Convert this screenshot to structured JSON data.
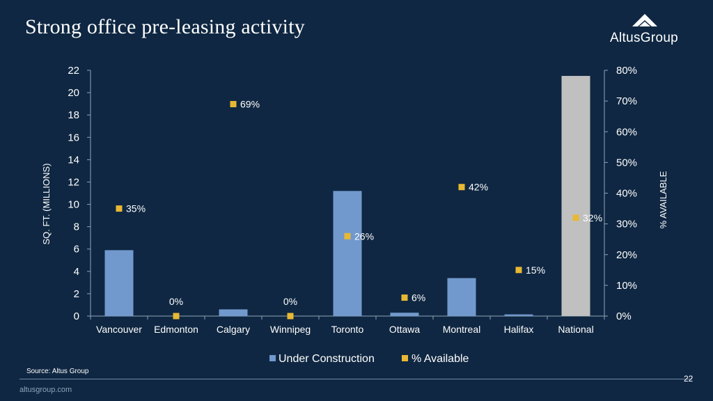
{
  "slide": {
    "title": "Strong office pre-leasing activity",
    "logo_text": "AltusGroup",
    "source": "Source:  Altus Group",
    "page_number": "22",
    "footer_url": "altusgroup.com"
  },
  "colors": {
    "background": "#0f2742",
    "bar": "#7199cd",
    "bar_national": "#c0c0c0",
    "marker": "#e8b833",
    "text": "#ffffff"
  },
  "chart_data": {
    "type": "bar",
    "categories": [
      "Vancouver",
      "Edmonton",
      "Calgary",
      "Winnipeg",
      "Toronto",
      "Ottawa",
      "Montreal",
      "Halifax",
      "National"
    ],
    "series": [
      {
        "name": "Under Construction",
        "type": "bar",
        "axis": "left",
        "values": [
          5.9,
          0,
          0.6,
          0,
          11.2,
          0.3,
          3.4,
          0.15,
          21.5
        ]
      },
      {
        "name": "% Available",
        "type": "marker",
        "axis": "right",
        "values": [
          35,
          0,
          69,
          0,
          26,
          6,
          42,
          15,
          32
        ],
        "labels": [
          "35%",
          "0%",
          "69%",
          "0%",
          "26%",
          "6%",
          "42%",
          "15%",
          "32%"
        ]
      }
    ],
    "ylabel": "SQ. FT. (MILLIONS)",
    "ylabel_right": "% AVAILABLE",
    "ylim": [
      0,
      22
    ],
    "ylim_right": [
      0,
      80
    ],
    "yticks": [
      "0",
      "2",
      "4",
      "6",
      "8",
      "10",
      "12",
      "14",
      "16",
      "18",
      "20",
      "22"
    ],
    "yticks_right": [
      "0%",
      "10%",
      "20%",
      "30%",
      "40%",
      "50%",
      "60%",
      "70%",
      "80%"
    ],
    "grid": false,
    "legend_position": "bottom"
  }
}
